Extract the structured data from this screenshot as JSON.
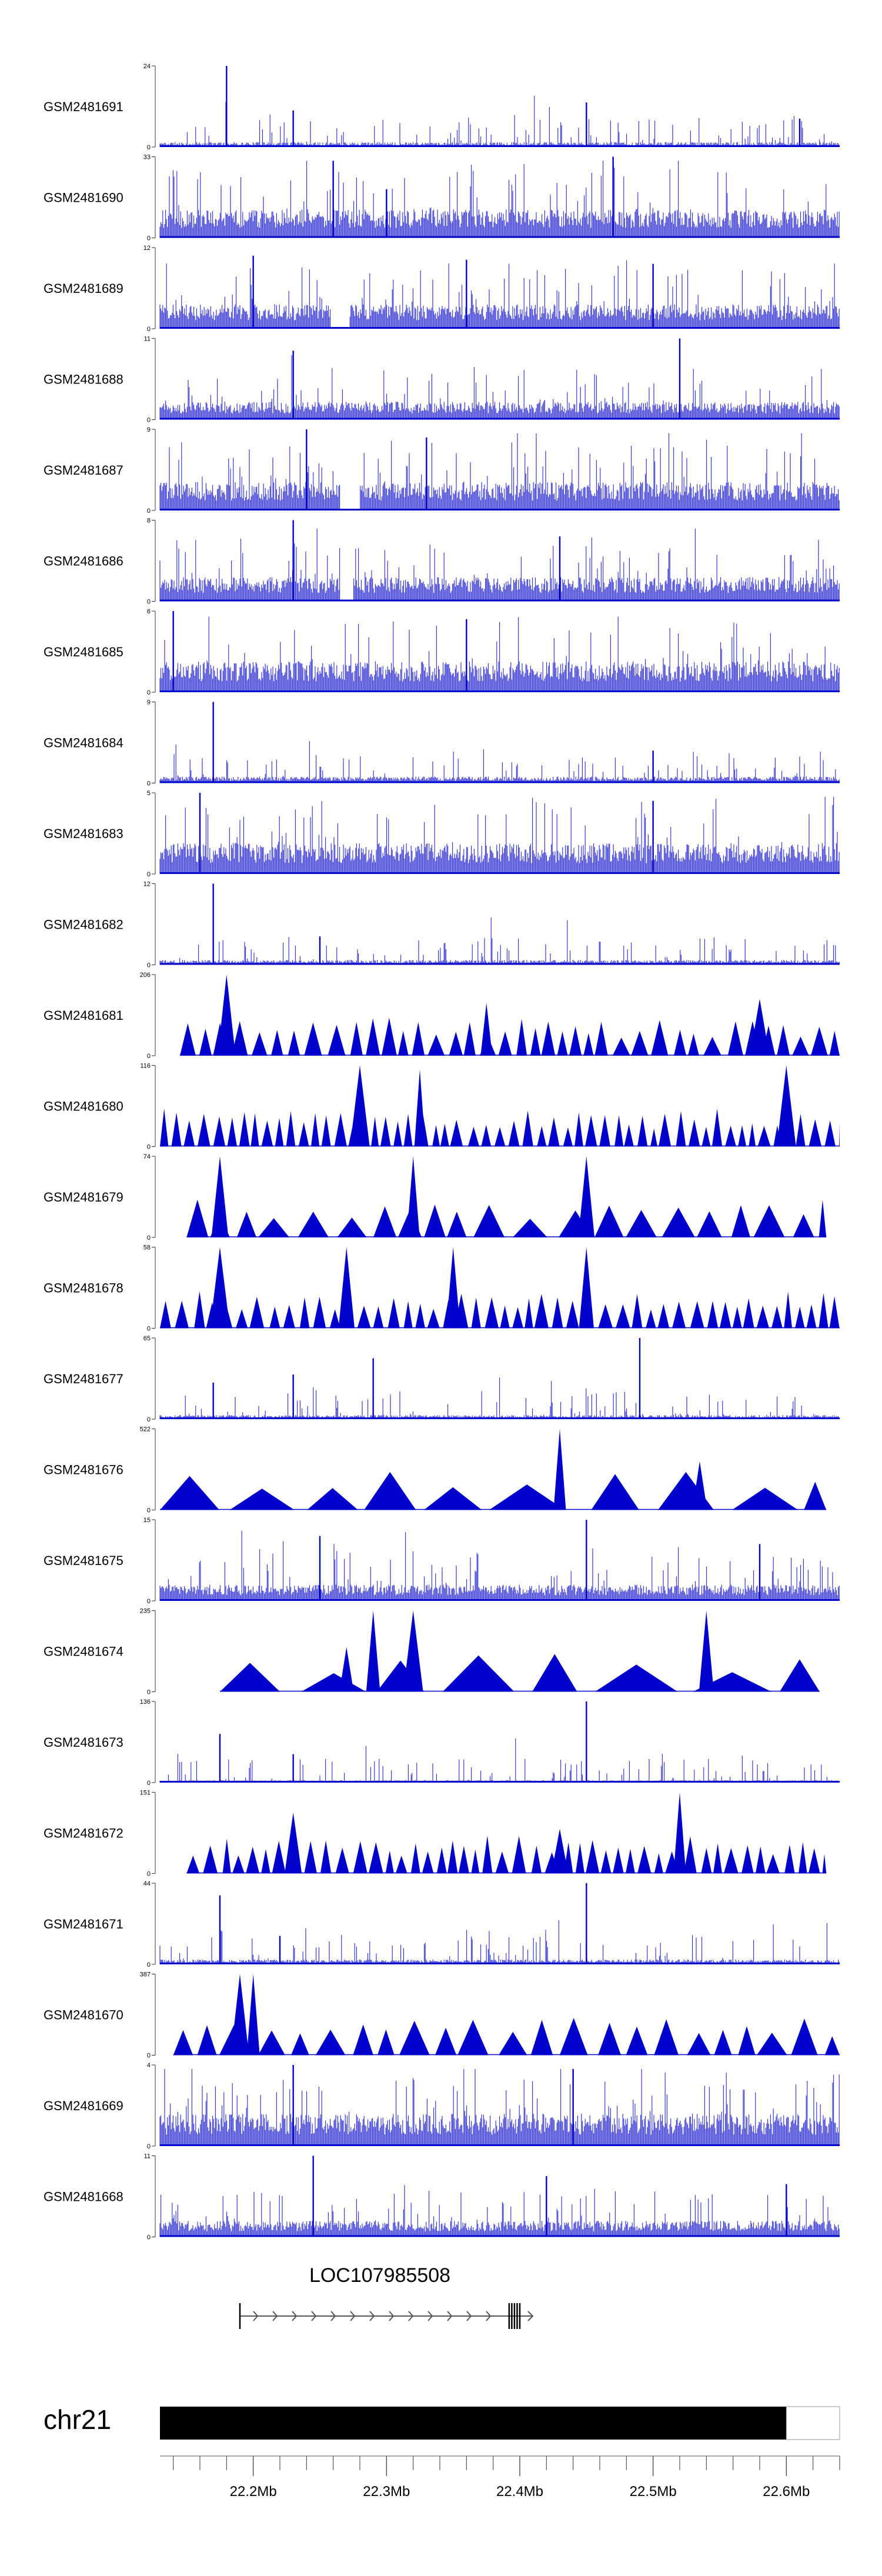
{
  "chart_data": {
    "type": "area",
    "title": "",
    "genomic_region": {
      "chromosome": "chr21",
      "start_mb": 22.13,
      "end_mb": 22.64
    },
    "colors": {
      "signal": "#0000cd",
      "ideogram": "#000000",
      "axis": "#555555"
    },
    "tracks": [
      {
        "name": "GSM2481691",
        "ymax_label": "24",
        "ymin_label": "0",
        "style": "dense",
        "seed": 11,
        "base": 0.06,
        "spikes": [
          [
            22.18,
            1.0
          ],
          [
            22.23,
            0.45
          ],
          [
            22.45,
            0.55
          ],
          [
            22.61,
            0.35
          ]
        ]
      },
      {
        "name": "GSM2481690",
        "ymax_label": "33",
        "ymin_label": "0",
        "style": "dense",
        "seed": 23,
        "base": 0.35,
        "spikes": [
          [
            22.26,
            0.95
          ],
          [
            22.47,
            1.0
          ],
          [
            22.3,
            0.6
          ]
        ]
      },
      {
        "name": "GSM2481689",
        "ymax_label": "12",
        "ymin_label": "0",
        "style": "dense",
        "seed": 37,
        "base": 0.3,
        "gap": [
          22.258,
          22.272
        ],
        "spikes": [
          [
            22.2,
            0.9
          ],
          [
            22.36,
            0.85
          ],
          [
            22.5,
            0.8
          ]
        ]
      },
      {
        "name": "GSM2481688",
        "ymax_label": "11",
        "ymin_label": "0",
        "style": "dense",
        "seed": 41,
        "base": 0.22,
        "spikes": [
          [
            22.23,
            0.85
          ],
          [
            22.52,
            1.0
          ]
        ]
      },
      {
        "name": "GSM2481687",
        "ymax_label": "9",
        "ymin_label": "0",
        "style": "dense",
        "seed": 53,
        "base": 0.35,
        "gap": [
          22.265,
          22.28
        ],
        "spikes": [
          [
            22.24,
            1.0
          ],
          [
            22.33,
            0.9
          ]
        ]
      },
      {
        "name": "GSM2481686",
        "ymax_label": "8",
        "ymin_label": "0",
        "style": "dense",
        "seed": 67,
        "base": 0.3,
        "gap": [
          22.265,
          22.275
        ],
        "spikes": [
          [
            22.23,
            1.0
          ],
          [
            22.43,
            0.8
          ]
        ]
      },
      {
        "name": "GSM2481685",
        "ymax_label": "6",
        "ymin_label": "0",
        "style": "dense",
        "seed": 71,
        "base": 0.38,
        "spikes": [
          [
            22.14,
            1.0
          ],
          [
            22.36,
            0.9
          ]
        ]
      },
      {
        "name": "GSM2481684",
        "ymax_label": "9",
        "ymin_label": "0",
        "style": "dense",
        "seed": 83,
        "base": 0.08,
        "spikes": [
          [
            22.17,
            1.0
          ],
          [
            22.5,
            0.4
          ]
        ]
      },
      {
        "name": "GSM2481683",
        "ymax_label": "5",
        "ymin_label": "0",
        "style": "dense",
        "seed": 97,
        "base": 0.38,
        "spikes": [
          [
            22.16,
            1.0
          ],
          [
            22.5,
            0.9
          ]
        ]
      },
      {
        "name": "GSM2481682",
        "ymax_label": "12",
        "ymin_label": "0",
        "style": "dense",
        "seed": 101,
        "base": 0.06,
        "spikes": [
          [
            22.17,
            1.0
          ],
          [
            22.25,
            0.35
          ]
        ]
      },
      {
        "name": "GSM2481681",
        "ymax_label": "206",
        "ymin_label": "0",
        "style": "triangles",
        "seed": 113,
        "start": 22.145,
        "end": 22.64,
        "step": 0.0105,
        "spikes": [
          [
            22.18,
            1.0
          ],
          [
            22.58,
            0.7
          ],
          [
            22.375,
            0.65
          ]
        ]
      },
      {
        "name": "GSM2481680",
        "ymax_label": "116",
        "ymin_label": "0",
        "style": "triangles",
        "seed": 127,
        "start": 22.13,
        "end": 22.64,
        "step": 0.0075,
        "spikes": [
          [
            22.28,
            1.0
          ],
          [
            22.6,
            1.0
          ],
          [
            22.325,
            0.95
          ]
        ]
      },
      {
        "name": "GSM2481679",
        "ymax_label": "74",
        "ymin_label": "0",
        "style": "triangles",
        "seed": 131,
        "start": 22.15,
        "end": 22.63,
        "step": 0.02,
        "spikes": [
          [
            22.175,
            1.0
          ],
          [
            22.32,
            1.0
          ],
          [
            22.45,
            1.0
          ]
        ]
      },
      {
        "name": "GSM2481678",
        "ymax_label": "58",
        "ymin_label": "0",
        "style": "triangles",
        "seed": 149,
        "start": 22.13,
        "end": 22.64,
        "step": 0.0085,
        "spikes": [
          [
            22.175,
            1.0
          ],
          [
            22.27,
            1.0
          ],
          [
            22.35,
            1.0
          ],
          [
            22.45,
            1.0
          ]
        ]
      },
      {
        "name": "GSM2481677",
        "ymax_label": "65",
        "ymin_label": "0",
        "style": "dense",
        "seed": 157,
        "base": 0.05,
        "spikes": [
          [
            22.49,
            1.0
          ],
          [
            22.29,
            0.75
          ],
          [
            22.23,
            0.55
          ],
          [
            22.17,
            0.45
          ]
        ]
      },
      {
        "name": "GSM2481676",
        "ymax_label": "522",
        "ymin_label": "0",
        "style": "triangles",
        "seed": 163,
        "start": 22.13,
        "end": 22.63,
        "step": 0.045,
        "spikes": [
          [
            22.43,
            1.0
          ],
          [
            22.535,
            0.6
          ]
        ]
      },
      {
        "name": "GSM2481675",
        "ymax_label": "15",
        "ymin_label": "0",
        "style": "dense",
        "seed": 173,
        "base": 0.2,
        "spikes": [
          [
            22.45,
            1.0
          ],
          [
            22.25,
            0.8
          ],
          [
            22.58,
            0.7
          ]
        ]
      },
      {
        "name": "GSM2481674",
        "ymax_label": "235",
        "ymin_label": "0",
        "style": "triangles",
        "seed": 181,
        "start": 22.175,
        "end": 22.625,
        "step": 0.048,
        "spikes": [
          [
            22.29,
            1.0
          ],
          [
            22.32,
            1.0
          ],
          [
            22.54,
            1.0
          ],
          [
            22.27,
            0.55
          ]
        ]
      },
      {
        "name": "GSM2481673",
        "ymax_label": "136",
        "ymin_label": "0",
        "style": "dense",
        "seed": 191,
        "base": 0.03,
        "spikes": [
          [
            22.45,
            1.0
          ],
          [
            22.175,
            0.6
          ],
          [
            22.23,
            0.35
          ]
        ]
      },
      {
        "name": "GSM2481672",
        "ymax_label": "151",
        "ymin_label": "0",
        "style": "triangles",
        "seed": 193,
        "start": 22.15,
        "end": 22.63,
        "step": 0.0085,
        "spikes": [
          [
            22.52,
            1.0
          ],
          [
            22.23,
            0.75
          ],
          [
            22.43,
            0.55
          ]
        ]
      },
      {
        "name": "GSM2481671",
        "ymax_label": "44",
        "ymin_label": "0",
        "style": "dense",
        "seed": 199,
        "base": 0.06,
        "spikes": [
          [
            22.45,
            1.0
          ],
          [
            22.175,
            0.85
          ],
          [
            22.22,
            0.35
          ]
        ]
      },
      {
        "name": "GSM2481670",
        "ymax_label": "387",
        "ymin_label": "0",
        "style": "triangles",
        "seed": 211,
        "start": 22.14,
        "end": 22.64,
        "step": 0.018,
        "spikes": [
          [
            22.19,
            1.0
          ],
          [
            22.2,
            1.0
          ]
        ]
      },
      {
        "name": "GSM2481669",
        "ymax_label": "4",
        "ymin_label": "0",
        "style": "dense",
        "seed": 223,
        "base": 0.4,
        "spikes": [
          [
            22.23,
            1.0
          ],
          [
            22.44,
            0.95
          ]
        ]
      },
      {
        "name": "GSM2481668",
        "ymax_label": "11",
        "ymin_label": "0",
        "style": "dense",
        "seed": 227,
        "base": 0.2,
        "spikes": [
          [
            22.245,
            1.0
          ],
          [
            22.42,
            0.75
          ],
          [
            22.6,
            0.65
          ]
        ]
      }
    ],
    "gene": {
      "name": "LOC107985508",
      "start_mb": 22.19,
      "end_mb": 22.4,
      "exons_mb": [
        22.19,
        22.392,
        22.394,
        22.396,
        22.398,
        22.4
      ],
      "strand": "+"
    },
    "chromosome_axis": {
      "label": "chr21",
      "ideogram_start_mb": 22.13,
      "ideogram_end_mb": 22.6,
      "ticks": [
        {
          "mb": 22.2,
          "label": "22.2Mb"
        },
        {
          "mb": 22.3,
          "label": "22.3Mb"
        },
        {
          "mb": 22.4,
          "label": "22.4Mb"
        },
        {
          "mb": 22.5,
          "label": "22.5Mb"
        },
        {
          "mb": 22.6,
          "label": "22.6Mb"
        }
      ],
      "minor_ticks_mb": [
        22.14,
        22.16,
        22.18,
        22.22,
        22.24,
        22.26,
        22.28,
        22.32,
        22.34,
        22.36,
        22.38,
        22.42,
        22.44,
        22.46,
        22.48,
        22.52,
        22.54,
        22.56,
        22.58,
        22.62,
        22.64
      ]
    }
  }
}
